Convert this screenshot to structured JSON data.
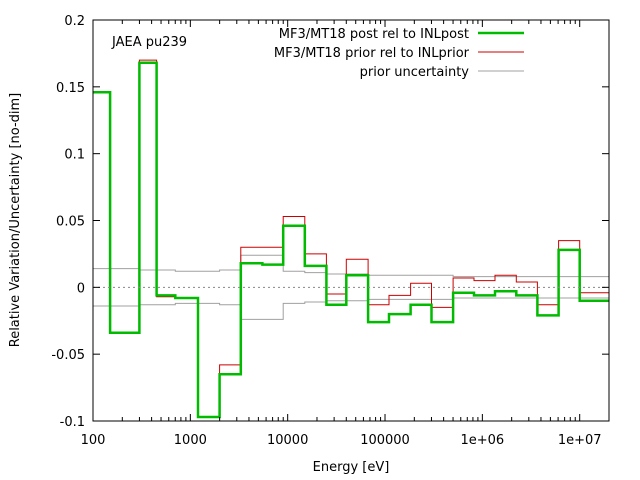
{
  "chart_data": {
    "type": "line",
    "annotation": "JAEA pu239",
    "xlabel": "Energy [eV]",
    "ylabel": "Relative Variation/Uncertainty [no-dim]",
    "x_scale": "log",
    "xlim": [
      100,
      20000000
    ],
    "ylim": [
      -0.1,
      0.2
    ],
    "x_ticks": [
      {
        "value": 100,
        "label": "100"
      },
      {
        "value": 1000,
        "label": "1000"
      },
      {
        "value": 10000,
        "label": "10000"
      },
      {
        "value": 100000,
        "label": "100000"
      },
      {
        "value": 1000000,
        "label": "1e+06"
      },
      {
        "value": 10000000,
        "label": "1e+07"
      }
    ],
    "y_ticks": [
      {
        "value": -0.1,
        "label": "-0.1"
      },
      {
        "value": -0.05,
        "label": "-0.05"
      },
      {
        "value": 0,
        "label": "0"
      },
      {
        "value": 0.05,
        "label": "0.05"
      },
      {
        "value": 0.1,
        "label": "0.1"
      },
      {
        "value": 0.15,
        "label": "0.15"
      },
      {
        "value": 0.2,
        "label": "0.2"
      }
    ],
    "legend_position": "top-right",
    "grid": false,
    "zero_line": true,
    "bin_edges": [
      100,
      150,
      300,
      450,
      700,
      1200,
      2000,
      3300,
      5500,
      9000,
      15000,
      25000,
      40000,
      67000,
      110000,
      183000,
      300000,
      500000,
      820000,
      1350000,
      2230000,
      3680000,
      6070000,
      10000000,
      20000000
    ],
    "series": [
      {
        "name": "MF3/MT18 post rel to INLpost",
        "color": "#00bb00",
        "values": [
          0.146,
          -0.034,
          0.168,
          -0.006,
          -0.008,
          -0.097,
          -0.065,
          0.018,
          0.017,
          0.046,
          0.016,
          -0.013,
          0.009,
          -0.026,
          -0.02,
          -0.013,
          -0.026,
          -0.004,
          -0.006,
          -0.003,
          -0.006,
          -0.021,
          0.028,
          -0.01
        ]
      },
      {
        "name": "MF3/MT18 prior rel to INLprior",
        "color": "#cc0000",
        "values": [
          0.146,
          -0.034,
          0.17,
          -0.007,
          -0.008,
          -0.097,
          -0.058,
          0.03,
          0.03,
          0.053,
          0.025,
          -0.005,
          0.021,
          -0.013,
          -0.006,
          0.003,
          -0.015,
          0.007,
          0.005,
          0.009,
          0.004,
          -0.013,
          0.035,
          -0.004
        ]
      },
      {
        "name": "prior uncertainty",
        "color": "#a0a0a0",
        "symmetric": true,
        "values": [
          0.014,
          0.014,
          0.013,
          0.013,
          0.012,
          0.012,
          0.013,
          0.024,
          0.024,
          0.012,
          0.011,
          0.01,
          0.01,
          0.009,
          0.009,
          0.009,
          0.009,
          0.008,
          0.008,
          0.008,
          0.008,
          0.008,
          0.008,
          0.008
        ]
      }
    ]
  }
}
